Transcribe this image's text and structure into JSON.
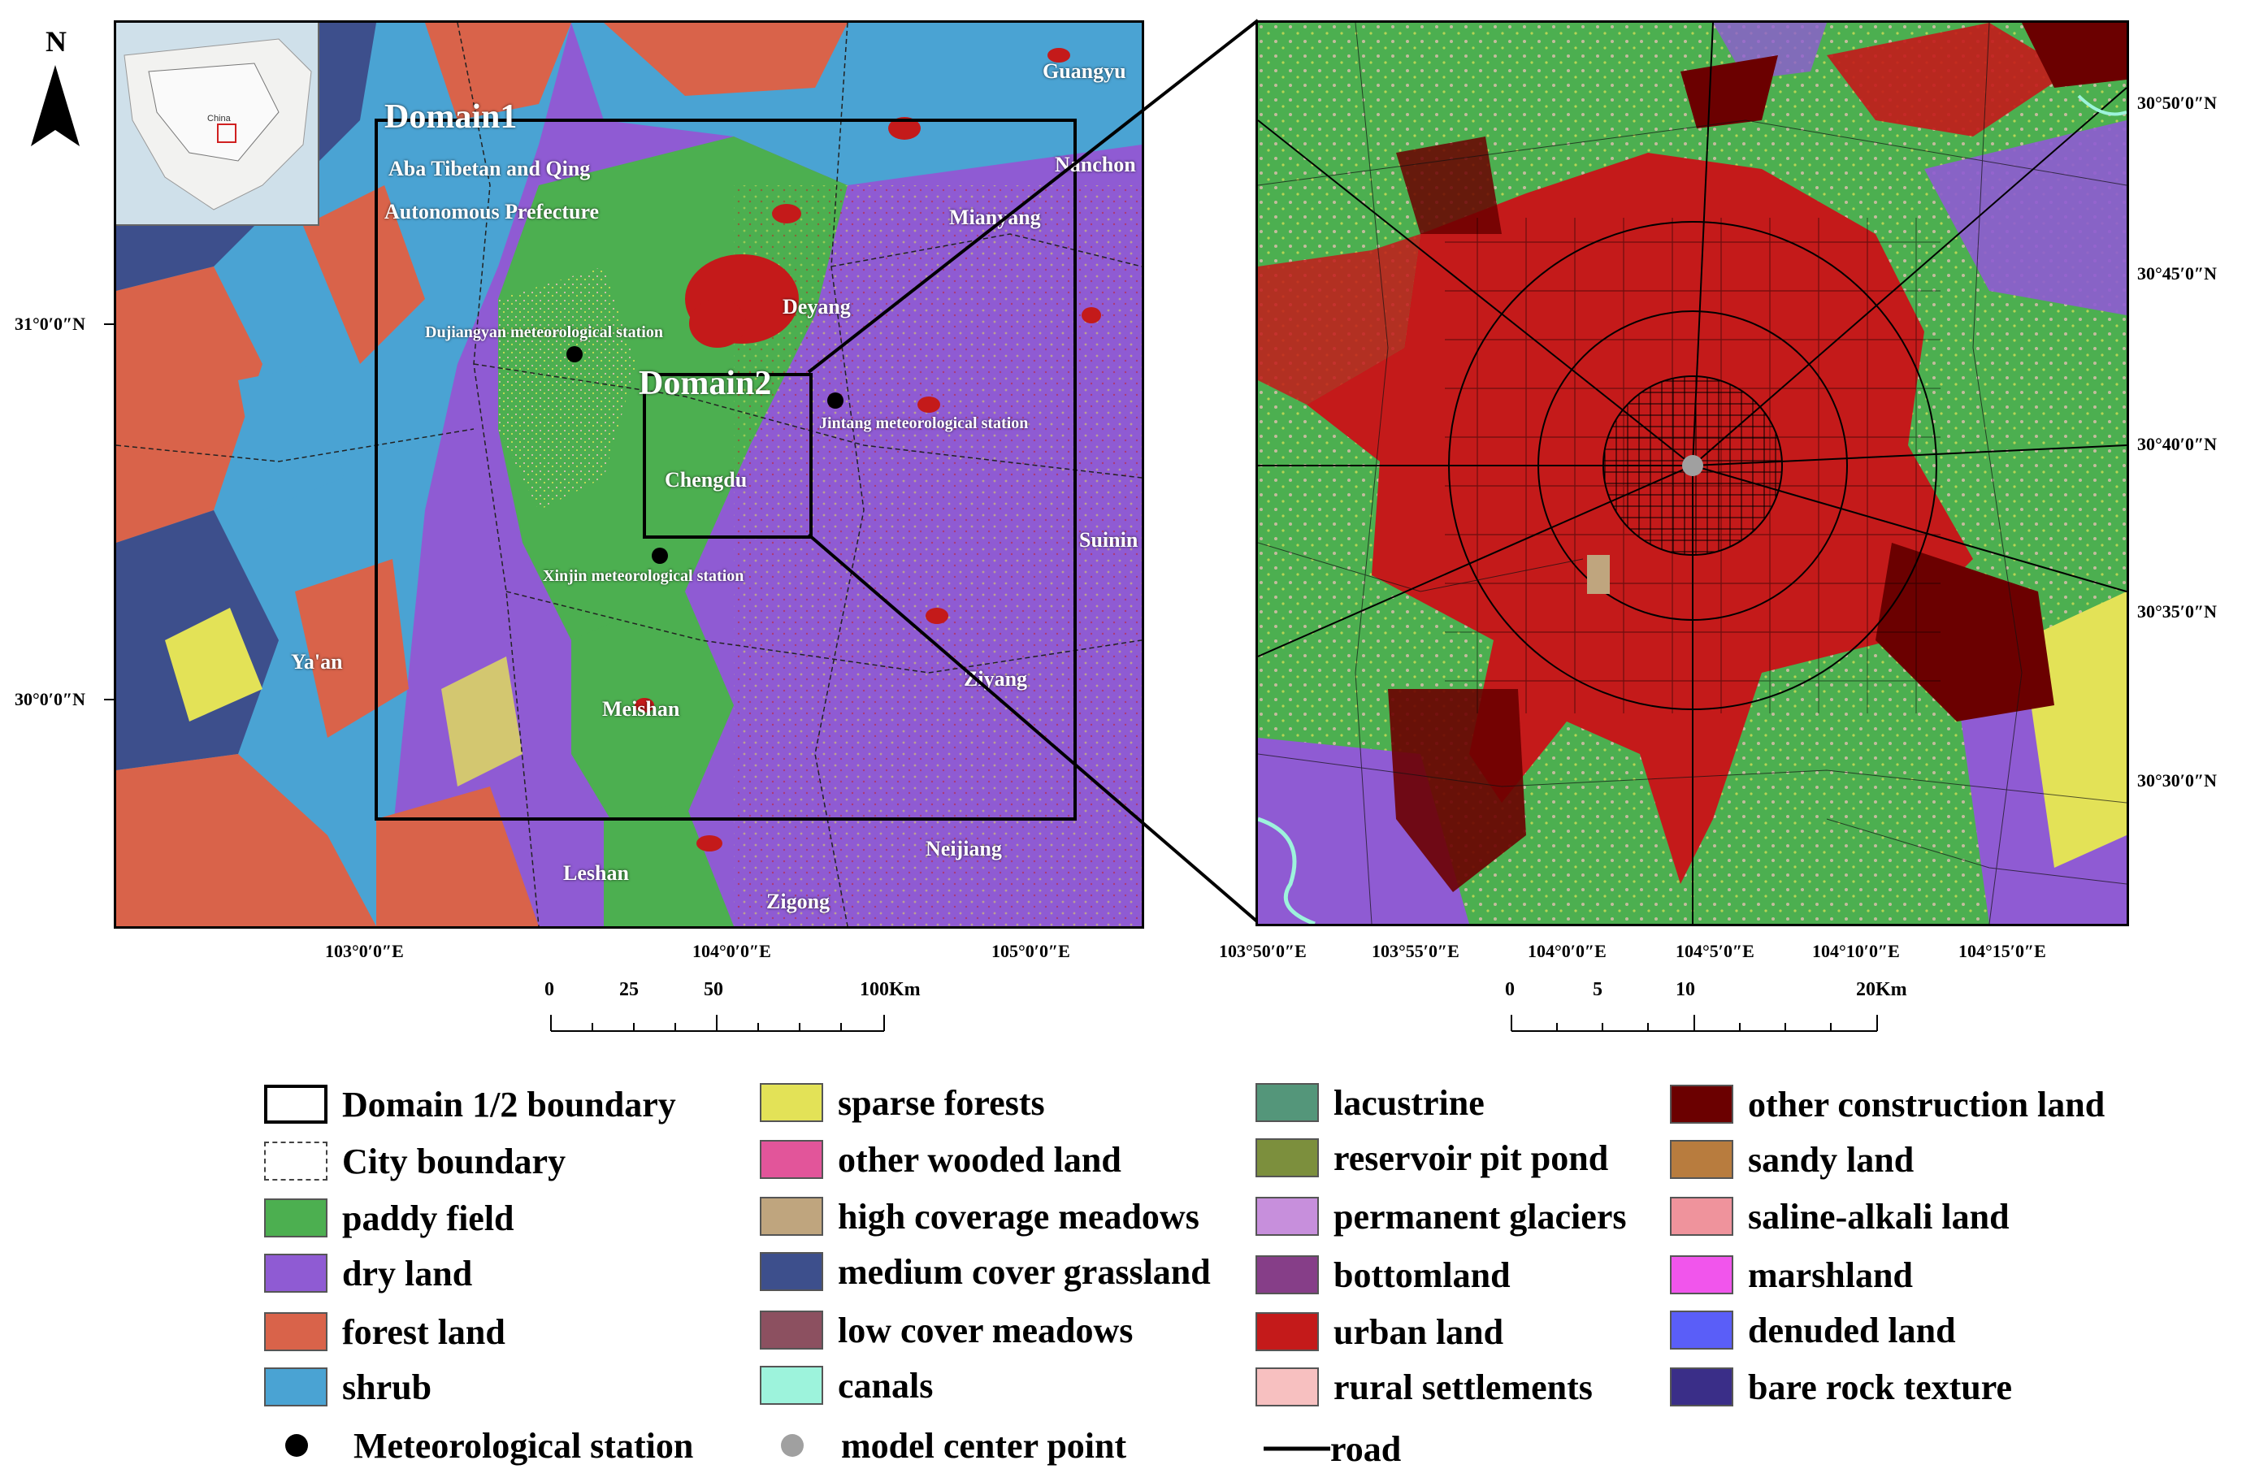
{
  "north": {
    "letter": "N"
  },
  "left_map": {
    "labels": {
      "domain1": "Domain1",
      "domain2": "Domain2",
      "aba1": "Aba Tibetan and Qing",
      "aba2": "Autonomous Prefecture",
      "dujiangyan": "Dujiangyan meteorological station",
      "jintang": "Jintang meteorological station",
      "xinjin": "Xinjin meteorological station",
      "chengdu": "Chengdu",
      "deyang": "Deyang",
      "mianyang": "Mianyang",
      "nanchong": "Nanchon",
      "guangyuan": "Guangyu",
      "suining": "Suinin",
      "yaan": "Ya'an",
      "meishan": "Meishan",
      "ziyang": "Ziyang",
      "neijiang": "Neijiang",
      "leshan": "Leshan",
      "zigong": "Zigong"
    },
    "inset": {
      "country": "China"
    },
    "lat_ticks": [
      "31°0′0″N",
      "30°0′0″N"
    ],
    "lon_ticks": [
      "103°0′0″E",
      "104°0′0″E",
      "105°0′0″E"
    ],
    "scalebar": {
      "labels": [
        "0",
        "25",
        "50",
        "100Km"
      ]
    }
  },
  "right_map": {
    "lat_ticks": [
      "30°50′0″N",
      "30°45′0″N",
      "30°40′0″N",
      "30°35′0″N",
      "30°30′0″N"
    ],
    "lon_ticks": [
      "103°50′0″E",
      "103°55′0″E",
      "104°0′0″E",
      "104°5′0″E",
      "104°10′0″E",
      "104°15′0″E"
    ],
    "scalebar": {
      "labels": [
        "0",
        "5",
        "10",
        "20Km"
      ]
    }
  },
  "legend": {
    "col1": [
      {
        "label": "Domain  1/2  boundary",
        "type": "box"
      },
      {
        "label": "City boundary",
        "type": "dashed"
      },
      {
        "label": "paddy field",
        "color": "#4caf50"
      },
      {
        "label": "dry land",
        "color": "#8f5bd3"
      },
      {
        "label": "forest land",
        "color": "#d9634a"
      },
      {
        "label": "shrub",
        "color": "#4aa3d3"
      }
    ],
    "col2": [
      {
        "label": "sparse forests",
        "color": "#e3e257"
      },
      {
        "label": "other wooded land",
        "color": "#e2559a"
      },
      {
        "label": "high coverage meadows",
        "color": "#bfa57e"
      },
      {
        "label": "medium cover grassland",
        "color": "#3d4f8c"
      },
      {
        "label": "low cover meadows",
        "color": "#8c5060"
      },
      {
        "label": "canals",
        "color": "#9df3dc"
      }
    ],
    "col3": [
      {
        "label": "lacustrine",
        "color": "#54967a"
      },
      {
        "label": "reservoir pit pond",
        "color": "#7c8f3d"
      },
      {
        "label": "permanent glaciers",
        "color": "#c78fdc"
      },
      {
        "label": "bottomland",
        "color": "#863e88"
      },
      {
        "label": "urban land",
        "color": "#c41a1a"
      },
      {
        "label": "rural settlements",
        "color": "#f7c0c0"
      }
    ],
    "col4": [
      {
        "label": "other construction land",
        "color": "#6b0000"
      },
      {
        "label": "sandy land",
        "color": "#b87c3e"
      },
      {
        "label": "saline-alkali land",
        "color": "#ef939c"
      },
      {
        "label": "marshland",
        "color": "#f155ec"
      },
      {
        "label": "denuded land",
        "color": "#5a5ef8"
      },
      {
        "label": "bare rock texture",
        "color": "#3a2e88"
      }
    ],
    "points": {
      "station": "Meteorological station",
      "center": "model center point",
      "road": "road"
    }
  }
}
